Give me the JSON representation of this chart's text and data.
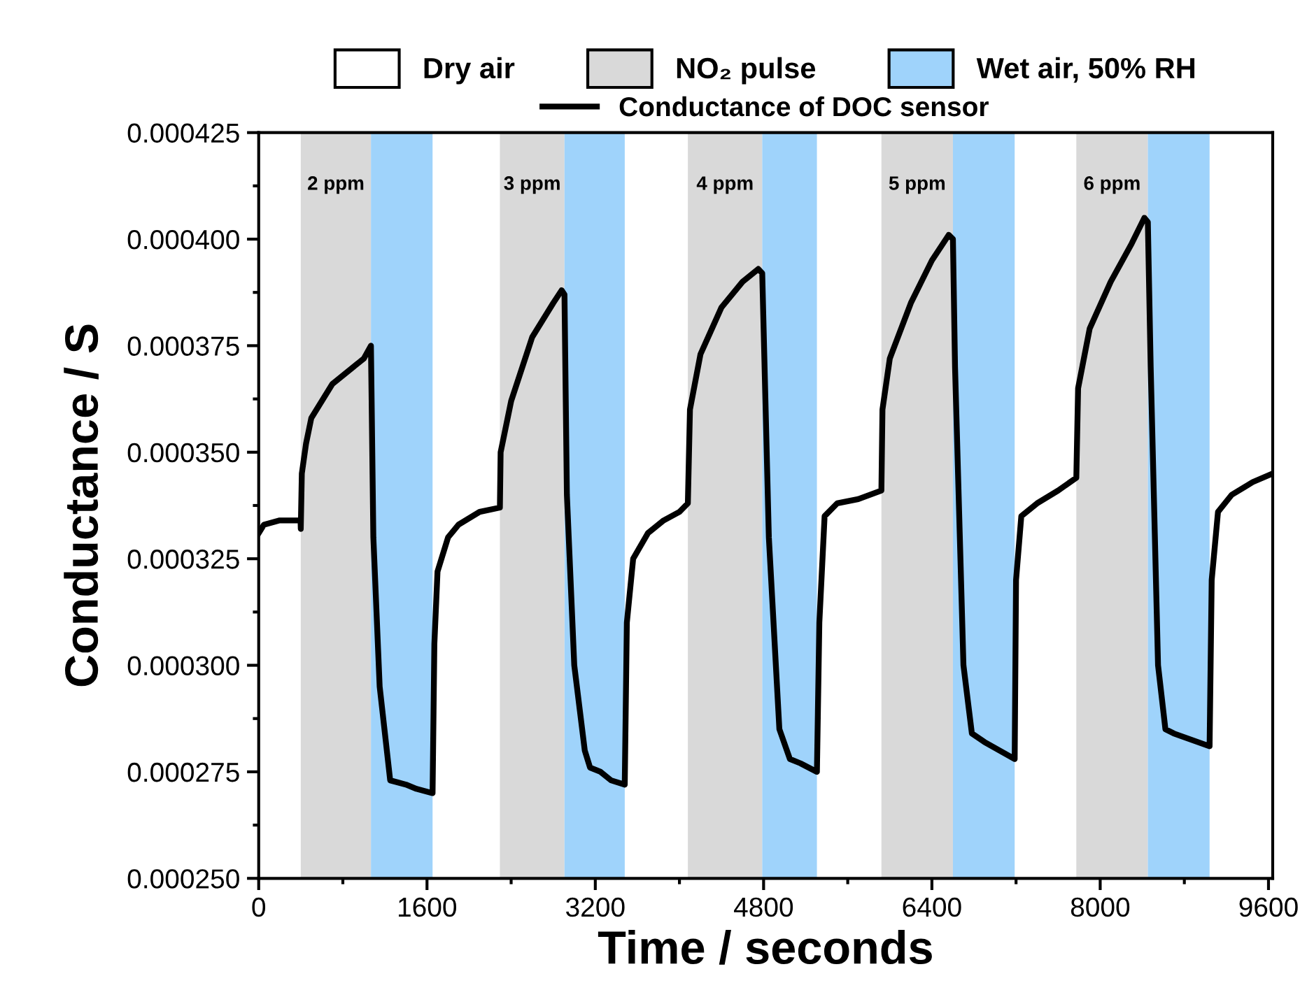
{
  "chart_data": {
    "type": "line",
    "xlabel": "Time / seconds",
    "ylabel": "Conductance / S",
    "xlim": [
      0,
      9640
    ],
    "ylim": [
      0.00025,
      0.000425
    ],
    "xticks": [
      0,
      1600,
      3200,
      4800,
      6400,
      8000,
      9600
    ],
    "yticks": [
      {
        "value": 0.00025,
        "label": "0.000250"
      },
      {
        "value": 0.000275,
        "label": "0.000275"
      },
      {
        "value": 0.0003,
        "label": "0.000300"
      },
      {
        "value": 0.000325,
        "label": "0.000325"
      },
      {
        "value": 0.00035,
        "label": "0.000350"
      },
      {
        "value": 0.000375,
        "label": "0.000375"
      },
      {
        "value": 0.0004,
        "label": "0.000400"
      },
      {
        "value": 0.000425,
        "label": "0.000425"
      }
    ],
    "grid": false,
    "legend": "top",
    "line_style": "solid",
    "marker": "none",
    "series": [
      {
        "name": "Conductance of DOC sensor",
        "color": "#000000",
        "x": [
          0,
          50,
          200,
          398,
          400,
          410,
          450,
          500,
          700,
          1000,
          1067,
          1090,
          1150,
          1250,
          1400,
          1500,
          1653,
          1670,
          1700,
          1800,
          1900,
          2100,
          2293,
          2300,
          2400,
          2600,
          2800,
          2880,
          2907,
          2930,
          3000,
          3100,
          3150,
          3250,
          3350,
          3480,
          3500,
          3560,
          3700,
          3850,
          4000,
          4080,
          4100,
          4200,
          4400,
          4600,
          4750,
          4787,
          4850,
          4950,
          5050,
          5150,
          5307,
          5330,
          5380,
          5500,
          5700,
          5920,
          5930,
          6000,
          6200,
          6400,
          6560,
          6600,
          6620,
          6700,
          6780,
          6900,
          7187,
          7200,
          7250,
          7400,
          7600,
          7773,
          7790,
          7900,
          8100,
          8300,
          8420,
          8453,
          8480,
          8550,
          8620,
          8700,
          9040,
          9060,
          9120,
          9250,
          9450,
          9640
        ],
        "values": [
          0.000331,
          0.000333,
          0.000334,
          0.000334,
          0.000332,
          0.000345,
          0.000352,
          0.000358,
          0.000366,
          0.000372,
          0.000375,
          0.00033,
          0.000295,
          0.000273,
          0.000272,
          0.000271,
          0.00027,
          0.000305,
          0.000322,
          0.00033,
          0.000333,
          0.000336,
          0.000337,
          0.00035,
          0.000362,
          0.000377,
          0.000385,
          0.000388,
          0.000387,
          0.00034,
          0.0003,
          0.00028,
          0.000276,
          0.000275,
          0.000273,
          0.000272,
          0.00031,
          0.000325,
          0.000331,
          0.000334,
          0.000336,
          0.000338,
          0.00036,
          0.000373,
          0.000384,
          0.00039,
          0.000393,
          0.000392,
          0.00033,
          0.000285,
          0.000278,
          0.000277,
          0.000275,
          0.00031,
          0.000335,
          0.000338,
          0.000339,
          0.000341,
          0.00036,
          0.000372,
          0.000385,
          0.000395,
          0.000401,
          0.0004,
          0.00037,
          0.0003,
          0.000284,
          0.000282,
          0.000278,
          0.00032,
          0.000335,
          0.000338,
          0.000341,
          0.000344,
          0.000365,
          0.000379,
          0.00039,
          0.000399,
          0.000405,
          0.000404,
          0.00037,
          0.0003,
          0.000285,
          0.000284,
          0.000281,
          0.00032,
          0.000336,
          0.00034,
          0.000343,
          0.000345
        ]
      }
    ],
    "bands": [
      {
        "axis": "x",
        "from": 400,
        "to": 1067,
        "label": "NO₂ pulse",
        "color": "#d9d9d9"
      },
      {
        "axis": "x",
        "from": 1067,
        "to": 1653,
        "label": "Wet air, 50% RH",
        "color": "#9fd3fb"
      },
      {
        "axis": "x",
        "from": 2293,
        "to": 2907,
        "color": "#d9d9d9"
      },
      {
        "axis": "x",
        "from": 2907,
        "to": 3480,
        "color": "#9fd3fb"
      },
      {
        "axis": "x",
        "from": 4080,
        "to": 4787,
        "color": "#d9d9d9"
      },
      {
        "axis": "x",
        "from": 4787,
        "to": 5307,
        "color": "#9fd3fb"
      },
      {
        "axis": "x",
        "from": 5920,
        "to": 6600,
        "color": "#d9d9d9"
      },
      {
        "axis": "x",
        "from": 6600,
        "to": 7187,
        "color": "#9fd3fb"
      },
      {
        "axis": "x",
        "from": 7773,
        "to": 8453,
        "color": "#d9d9d9"
      },
      {
        "axis": "x",
        "from": 8453,
        "to": 9040,
        "color": "#9fd3fb"
      }
    ],
    "annotations": [
      "Dry air",
      "2 ppm",
      "3 ppm",
      "4 ppm",
      "5 ppm",
      "6 ppm"
    ]
  }
}
